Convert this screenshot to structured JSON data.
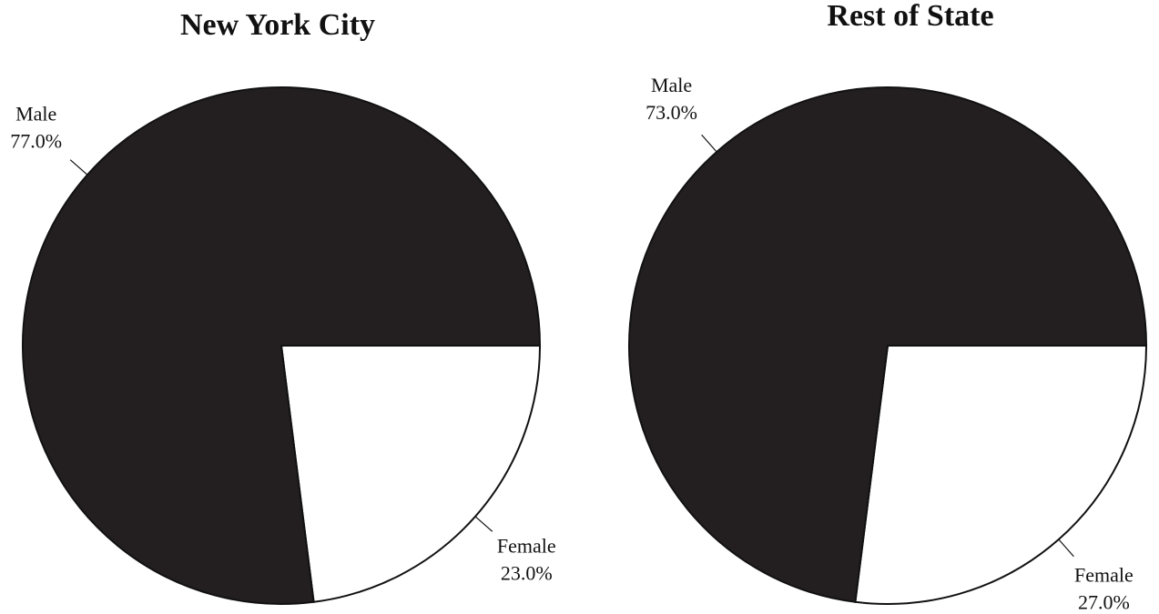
{
  "chart_data": [
    {
      "type": "pie",
      "title": "New York City",
      "categories": [
        "Male",
        "Female"
      ],
      "values": [
        77,
        23
      ],
      "value_labels": [
        "77.0%",
        "23.0%"
      ],
      "colors": [
        "#231f20",
        "#ffffff"
      ]
    },
    {
      "type": "pie",
      "title": "Rest of State",
      "categories": [
        "Male",
        "Female"
      ],
      "values": [
        73,
        27
      ],
      "value_labels": [
        "73.0%",
        "27.0%"
      ],
      "colors": [
        "#231f20",
        "#ffffff"
      ]
    }
  ]
}
